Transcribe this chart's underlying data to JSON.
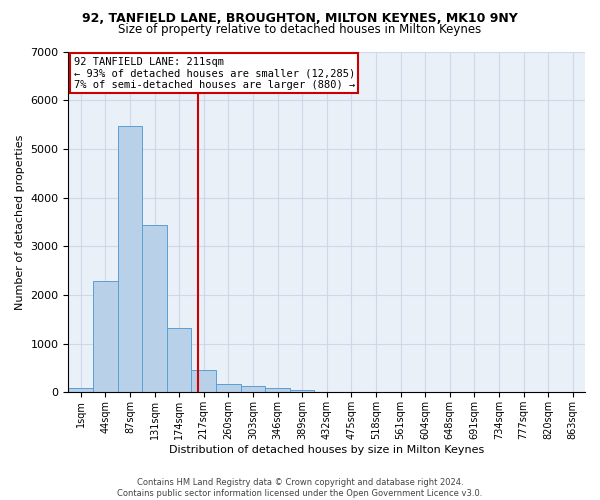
{
  "title1": "92, TANFIELD LANE, BROUGHTON, MILTON KEYNES, MK10 9NY",
  "title2": "Size of property relative to detached houses in Milton Keynes",
  "xlabel": "Distribution of detached houses by size in Milton Keynes",
  "ylabel": "Number of detached properties",
  "footer1": "Contains HM Land Registry data © Crown copyright and database right 2024.",
  "footer2": "Contains public sector information licensed under the Open Government Licence v3.0.",
  "annotation_line1": "92 TANFIELD LANE: 211sqm",
  "annotation_line2": "← 93% of detached houses are smaller (12,285)",
  "annotation_line3": "7% of semi-detached houses are larger (880) →",
  "bar_color": "#b8d0e8",
  "bar_edge_color": "#5a9fd4",
  "vline_color": "#cc0000",
  "bin_labels": [
    "1sqm",
    "44sqm",
    "87sqm",
    "131sqm",
    "174sqm",
    "217sqm",
    "260sqm",
    "303sqm",
    "346sqm",
    "389sqm",
    "432sqm",
    "475sqm",
    "518sqm",
    "561sqm",
    "604sqm",
    "648sqm",
    "691sqm",
    "734sqm",
    "777sqm",
    "820sqm",
    "863sqm"
  ],
  "bar_heights": [
    80,
    2280,
    5460,
    3440,
    1320,
    460,
    175,
    120,
    85,
    55,
    0,
    0,
    0,
    0,
    0,
    0,
    0,
    0,
    0,
    0,
    0
  ],
  "ylim": [
    0,
    7000
  ],
  "yticks": [
    0,
    1000,
    2000,
    3000,
    4000,
    5000,
    6000,
    7000
  ],
  "grid_color": "#d0d8e8",
  "bg_color": "#eaf0f8",
  "title1_fontsize": 9,
  "title2_fontsize": 8.5,
  "ylabel_fontsize": 8,
  "xlabel_fontsize": 8,
  "tick_fontsize": 7,
  "footer_fontsize": 6,
  "annotation_fontsize": 7.5,
  "vline_x_pos": 4.77
}
